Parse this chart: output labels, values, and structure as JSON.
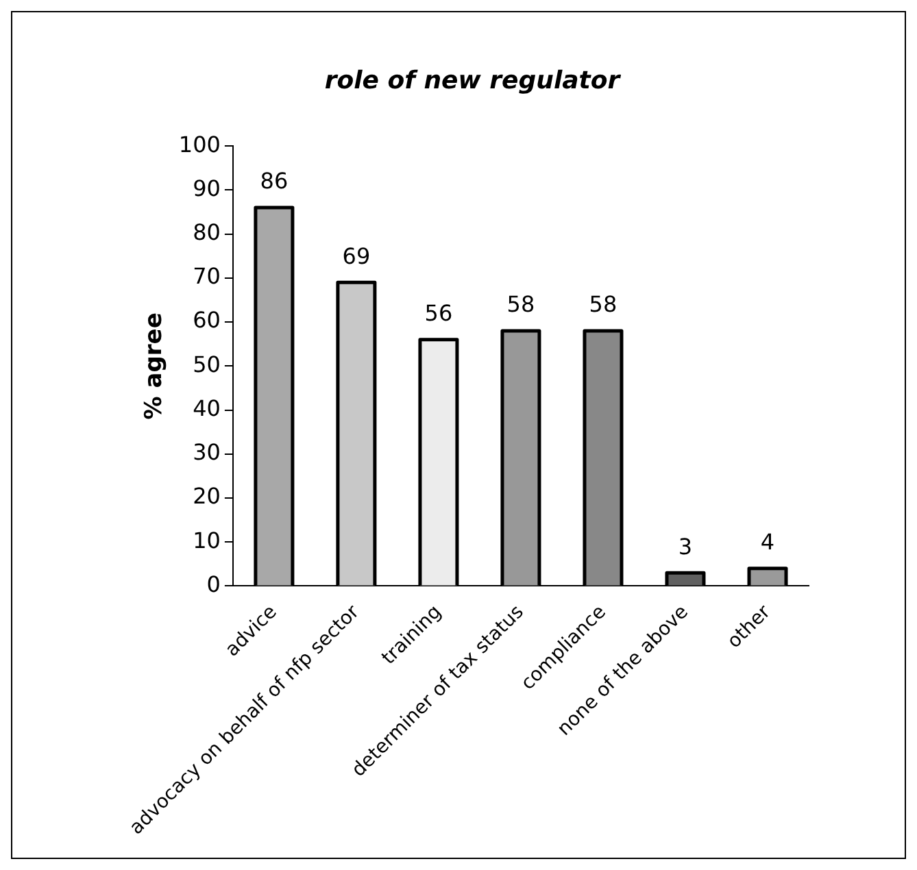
{
  "chart_data": {
    "type": "bar",
    "title": "role of new regulator",
    "ylabel": "% agree",
    "categories": [
      "advice",
      "advocacy on behalf of nfp sector",
      "training",
      "determiner of tax status",
      "compliance",
      "none of the above",
      "other"
    ],
    "values": [
      86,
      69,
      56,
      58,
      58,
      3,
      4
    ],
    "colors": [
      "#a8a8a8",
      "#c8c8c8",
      "#ececec",
      "#989898",
      "#888888",
      "#606060",
      "#9a9a9a"
    ],
    "ylim": [
      0,
      100
    ],
    "yticks": [
      0,
      10,
      20,
      30,
      40,
      50,
      60,
      70,
      80,
      90,
      100
    ],
    "grid": false,
    "legend": false,
    "data_labels": true
  }
}
